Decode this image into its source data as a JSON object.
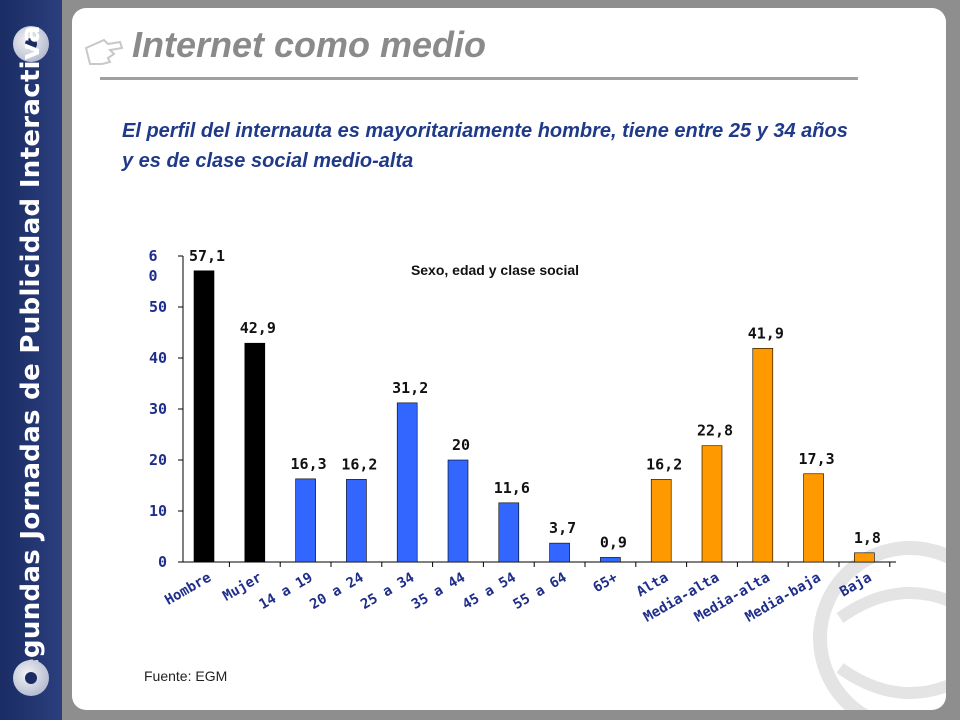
{
  "sidebar": {
    "vertical_title": "Segundas Jornadas de Publicidad Interactiva"
  },
  "slide": {
    "title": "Internet como medio",
    "subtitle": "El perfil del internauta es mayoritariamente hombre, tiene entre 25 y 34 años y es de clase social medio-alta",
    "source": "Fuente: EGM"
  },
  "colors": {
    "black": "#000000",
    "blue": "#3366ff",
    "orange": "#ff9900",
    "axis_text": "#1f2e8a"
  },
  "chart_data": {
    "type": "bar",
    "title": "Sexo, edad y clase social",
    "xlabel": "",
    "ylabel": "",
    "ylim": [
      0,
      60
    ],
    "yticks": [
      0,
      10,
      20,
      30,
      40,
      50,
      60
    ],
    "grid": false,
    "legend": "none",
    "categories": [
      "Hombre",
      "Mujer",
      "14 a 19",
      "20 a 24",
      "25 a 34",
      "35 a 44",
      "45 a 54",
      "55 a 64",
      "65+",
      "Alta",
      "Media-alta",
      "Media-alta",
      "Media-baja",
      "Baja"
    ],
    "values": [
      57.1,
      42.9,
      16.3,
      16.2,
      31.2,
      20,
      11.6,
      3.7,
      0.9,
      16.2,
      22.8,
      41.9,
      17.3,
      1.8
    ],
    "value_labels": [
      "57,1",
      "42,9",
      "16,3",
      "16,2",
      "31,2",
      "20",
      "11,6",
      "3,7",
      "0,9",
      "16,2",
      "22,8",
      "41,9",
      "17,3",
      "1,8"
    ],
    "bar_colors": [
      "black",
      "black",
      "blue",
      "blue",
      "blue",
      "blue",
      "blue",
      "blue",
      "blue",
      "orange",
      "orange",
      "orange",
      "orange",
      "orange"
    ]
  }
}
